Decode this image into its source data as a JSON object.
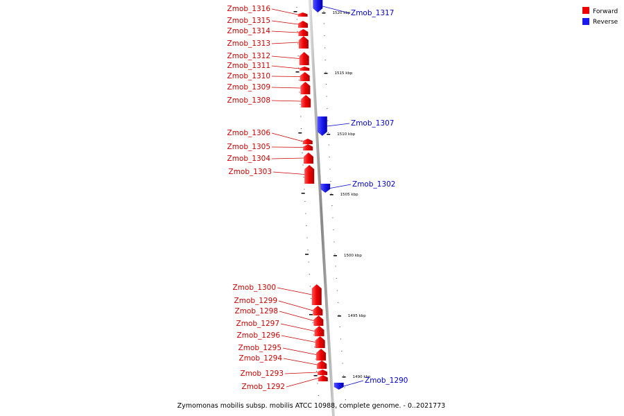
{
  "colors": {
    "forward": "#ee0000",
    "reverse": "#1a1aee",
    "backbone": "#999999"
  },
  "legend": {
    "forward": "Forward",
    "reverse": "Reverse"
  },
  "caption": "Zymomonas mobilis subsp. mobilis ATCC 10988, complete genome. - 0..2021773",
  "ticks": [
    "1520 kbp",
    "1515 kbp",
    "1510 kbp",
    "1505 kbp",
    "1500 kbp",
    "1495 kbp",
    "1490 kbp"
  ],
  "genes": [
    {
      "name": "Zmob_1317",
      "strand": "reverse"
    },
    {
      "name": "Zmob_1316",
      "strand": "forward"
    },
    {
      "name": "Zmob_1315",
      "strand": "forward"
    },
    {
      "name": "Zmob_1314",
      "strand": "forward"
    },
    {
      "name": "Zmob_1313",
      "strand": "forward"
    },
    {
      "name": "Zmob_1312",
      "strand": "forward"
    },
    {
      "name": "Zmob_1311",
      "strand": "forward"
    },
    {
      "name": "Zmob_1310",
      "strand": "forward"
    },
    {
      "name": "Zmob_1309",
      "strand": "forward"
    },
    {
      "name": "Zmob_1308",
      "strand": "forward"
    },
    {
      "name": "Zmob_1307",
      "strand": "reverse"
    },
    {
      "name": "Zmob_1306",
      "strand": "forward"
    },
    {
      "name": "Zmob_1305",
      "strand": "forward"
    },
    {
      "name": "Zmob_1304",
      "strand": "forward"
    },
    {
      "name": "Zmob_1303",
      "strand": "forward"
    },
    {
      "name": "Zmob_1302",
      "strand": "reverse"
    },
    {
      "name": "Zmob_1300",
      "strand": "forward"
    },
    {
      "name": "Zmob_1299",
      "strand": "forward"
    },
    {
      "name": "Zmob_1298",
      "strand": "forward"
    },
    {
      "name": "Zmob_1297",
      "strand": "forward"
    },
    {
      "name": "Zmob_1296",
      "strand": "forward"
    },
    {
      "name": "Zmob_1295",
      "strand": "forward"
    },
    {
      "name": "Zmob_1294",
      "strand": "forward"
    },
    {
      "name": "Zmob_1293",
      "strand": "forward"
    },
    {
      "name": "Zmob_1292",
      "strand": "forward"
    },
    {
      "name": "Zmob_1290",
      "strand": "reverse"
    }
  ]
}
